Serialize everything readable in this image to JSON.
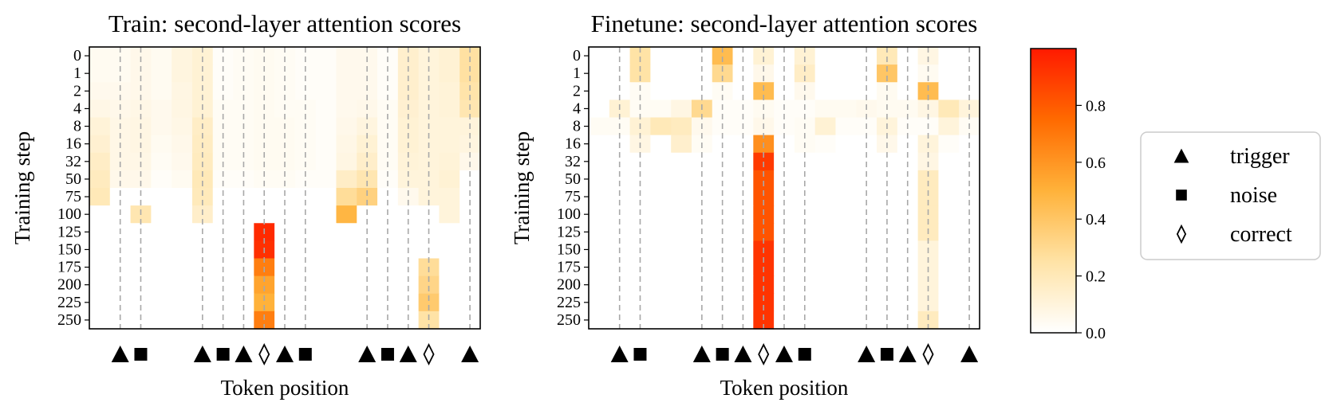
{
  "chart_data": [
    {
      "type": "heatmap",
      "title": "Train: second-layer attention scores",
      "xlabel": "Token position",
      "ylabel": "Training step",
      "y_ticks": [
        "0",
        "1",
        "2",
        "4",
        "8",
        "16",
        "32",
        "50",
        "75",
        "100",
        "125",
        "150",
        "175",
        "200",
        "225",
        "250"
      ],
      "n_cols": 19,
      "markers": [
        {
          "col": 1,
          "kind": "trigger"
        },
        {
          "col": 2,
          "kind": "noise"
        },
        {
          "col": 5,
          "kind": "trigger"
        },
        {
          "col": 6,
          "kind": "noise"
        },
        {
          "col": 7,
          "kind": "trigger"
        },
        {
          "col": 8,
          "kind": "correct"
        },
        {
          "col": 9,
          "kind": "trigger"
        },
        {
          "col": 10,
          "kind": "noise"
        },
        {
          "col": 13,
          "kind": "trigger"
        },
        {
          "col": 14,
          "kind": "noise"
        },
        {
          "col": 15,
          "kind": "trigger"
        },
        {
          "col": 16,
          "kind": "correct"
        },
        {
          "col": 18,
          "kind": "trigger"
        }
      ],
      "values": [
        [
          0.04,
          0.04,
          0.06,
          0.04,
          0.09,
          0.12,
          0.02,
          0.03,
          0.04,
          0.03,
          0.02,
          0.02,
          0.05,
          0.05,
          0.02,
          0.14,
          0.1,
          0.12,
          0.26
        ],
        [
          0.04,
          0.04,
          0.06,
          0.04,
          0.09,
          0.12,
          0.02,
          0.03,
          0.04,
          0.03,
          0.02,
          0.02,
          0.05,
          0.05,
          0.02,
          0.14,
          0.1,
          0.12,
          0.26
        ],
        [
          0.05,
          0.05,
          0.06,
          0.04,
          0.08,
          0.12,
          0.02,
          0.03,
          0.04,
          0.03,
          0.02,
          0.02,
          0.05,
          0.05,
          0.02,
          0.14,
          0.1,
          0.11,
          0.24
        ],
        [
          0.07,
          0.06,
          0.07,
          0.05,
          0.08,
          0.12,
          0.03,
          0.03,
          0.04,
          0.03,
          0.03,
          0.02,
          0.05,
          0.06,
          0.03,
          0.13,
          0.1,
          0.11,
          0.22
        ],
        [
          0.11,
          0.07,
          0.08,
          0.05,
          0.07,
          0.16,
          0.03,
          0.03,
          0.04,
          0.04,
          0.03,
          0.02,
          0.06,
          0.09,
          0.03,
          0.12,
          0.1,
          0.1,
          0.1
        ],
        [
          0.13,
          0.07,
          0.08,
          0.04,
          0.06,
          0.17,
          0.03,
          0.03,
          0.04,
          0.04,
          0.03,
          0.02,
          0.07,
          0.12,
          0.03,
          0.12,
          0.1,
          0.1,
          0.09
        ],
        [
          0.16,
          0.07,
          0.07,
          0.03,
          0.05,
          0.18,
          0.03,
          0.03,
          0.04,
          0.04,
          0.03,
          0.02,
          0.08,
          0.15,
          0.03,
          0.11,
          0.1,
          0.11,
          0.06
        ],
        [
          0.18,
          0.06,
          0.06,
          0.02,
          0.04,
          0.2,
          0.02,
          0.02,
          0.03,
          0.03,
          0.02,
          0.02,
          0.16,
          0.22,
          0.02,
          0.1,
          0.1,
          0.12,
          0.0
        ],
        [
          0.2,
          0.0,
          0.0,
          0.0,
          0.0,
          0.19,
          0.0,
          0.0,
          0.0,
          0.0,
          0.0,
          0.0,
          0.28,
          0.34,
          0.0,
          0.05,
          0.1,
          0.1,
          0.0
        ],
        [
          0.0,
          0.0,
          0.22,
          0.0,
          0.0,
          0.15,
          0.0,
          0.0,
          0.0,
          0.0,
          0.0,
          0.0,
          0.48,
          0.0,
          0.0,
          0.0,
          0.0,
          0.1,
          0.0
        ],
        [
          0.0,
          0.0,
          0.0,
          0.0,
          0.0,
          0.0,
          0.0,
          0.0,
          0.95,
          0.0,
          0.0,
          0.0,
          0.0,
          0.0,
          0.0,
          0.0,
          0.0,
          0.0,
          0.0
        ],
        [
          0.0,
          0.0,
          0.0,
          0.0,
          0.0,
          0.0,
          0.0,
          0.0,
          0.93,
          0.0,
          0.0,
          0.0,
          0.0,
          0.0,
          0.0,
          0.0,
          0.0,
          0.0,
          0.0
        ],
        [
          0.0,
          0.0,
          0.0,
          0.0,
          0.0,
          0.0,
          0.0,
          0.0,
          0.68,
          0.0,
          0.0,
          0.0,
          0.0,
          0.0,
          0.0,
          0.0,
          0.28,
          0.0,
          0.0
        ],
        [
          0.0,
          0.0,
          0.0,
          0.0,
          0.0,
          0.0,
          0.0,
          0.0,
          0.55,
          0.0,
          0.0,
          0.0,
          0.0,
          0.0,
          0.0,
          0.0,
          0.32,
          0.0,
          0.0
        ],
        [
          0.0,
          0.0,
          0.0,
          0.0,
          0.0,
          0.0,
          0.0,
          0.0,
          0.5,
          0.0,
          0.0,
          0.0,
          0.0,
          0.0,
          0.0,
          0.0,
          0.38,
          0.0,
          0.0
        ],
        [
          0.0,
          0.0,
          0.0,
          0.0,
          0.0,
          0.0,
          0.0,
          0.0,
          0.68,
          0.0,
          0.0,
          0.0,
          0.0,
          0.0,
          0.0,
          0.0,
          0.25,
          0.0,
          0.0
        ]
      ]
    },
    {
      "type": "heatmap",
      "title": "Finetune: second-layer attention scores",
      "xlabel": "Token position",
      "ylabel": "Training step",
      "y_ticks": [
        "0",
        "1",
        "2",
        "4",
        "8",
        "16",
        "32",
        "50",
        "75",
        "100",
        "125",
        "150",
        "175",
        "200",
        "225",
        "250"
      ],
      "n_cols": 19,
      "markers": [
        {
          "col": 1,
          "kind": "trigger"
        },
        {
          "col": 2,
          "kind": "noise"
        },
        {
          "col": 5,
          "kind": "trigger"
        },
        {
          "col": 6,
          "kind": "noise"
        },
        {
          "col": 7,
          "kind": "trigger"
        },
        {
          "col": 8,
          "kind": "correct"
        },
        {
          "col": 9,
          "kind": "trigger"
        },
        {
          "col": 10,
          "kind": "noise"
        },
        {
          "col": 13,
          "kind": "trigger"
        },
        {
          "col": 14,
          "kind": "noise"
        },
        {
          "col": 15,
          "kind": "trigger"
        },
        {
          "col": 16,
          "kind": "correct"
        },
        {
          "col": 18,
          "kind": "trigger"
        }
      ],
      "values": [
        [
          0.0,
          0.0,
          0.25,
          0.0,
          0.0,
          0.0,
          0.45,
          0.0,
          0.12,
          0.0,
          0.12,
          0.0,
          0.0,
          0.0,
          0.2,
          0.0,
          0.08,
          0.0,
          0.0
        ],
        [
          0.0,
          0.0,
          0.25,
          0.0,
          0.0,
          0.0,
          0.3,
          0.0,
          0.06,
          0.0,
          0.16,
          0.0,
          0.0,
          0.0,
          0.4,
          0.0,
          0.04,
          0.0,
          0.0
        ],
        [
          0.0,
          0.0,
          0.03,
          0.0,
          0.0,
          0.0,
          0.03,
          0.0,
          0.45,
          0.0,
          0.05,
          0.0,
          0.0,
          0.0,
          0.04,
          0.0,
          0.45,
          0.0,
          0.0
        ],
        [
          0.0,
          0.12,
          0.03,
          0.03,
          0.08,
          0.3,
          0.02,
          0.02,
          0.04,
          0.02,
          0.02,
          0.04,
          0.04,
          0.05,
          0.04,
          0.04,
          0.08,
          0.2,
          0.1
        ],
        [
          0.03,
          0.03,
          0.12,
          0.2,
          0.18,
          0.05,
          0.02,
          0.02,
          0.06,
          0.02,
          0.03,
          0.12,
          0.02,
          0.02,
          0.1,
          0.02,
          0.02,
          0.1,
          0.03
        ],
        [
          0.0,
          0.0,
          0.08,
          0.0,
          0.14,
          0.03,
          0.0,
          0.0,
          0.62,
          0.0,
          0.03,
          0.02,
          0.0,
          0.0,
          0.06,
          0.0,
          0.1,
          0.02,
          0.0
        ],
        [
          0.0,
          0.0,
          0.0,
          0.0,
          0.0,
          0.0,
          0.0,
          0.0,
          0.9,
          0.0,
          0.0,
          0.0,
          0.0,
          0.0,
          0.0,
          0.0,
          0.08,
          0.0,
          0.0
        ],
        [
          0.0,
          0.0,
          0.0,
          0.0,
          0.0,
          0.0,
          0.0,
          0.0,
          0.82,
          0.0,
          0.0,
          0.0,
          0.0,
          0.0,
          0.0,
          0.0,
          0.18,
          0.0,
          0.0
        ],
        [
          0.0,
          0.0,
          0.0,
          0.0,
          0.0,
          0.0,
          0.0,
          0.0,
          0.82,
          0.0,
          0.0,
          0.0,
          0.0,
          0.0,
          0.0,
          0.0,
          0.18,
          0.0,
          0.0
        ],
        [
          0.0,
          0.0,
          0.0,
          0.0,
          0.0,
          0.0,
          0.0,
          0.0,
          0.82,
          0.0,
          0.0,
          0.0,
          0.0,
          0.0,
          0.0,
          0.0,
          0.18,
          0.0,
          0.0
        ],
        [
          0.0,
          0.0,
          0.0,
          0.0,
          0.0,
          0.0,
          0.0,
          0.0,
          0.82,
          0.0,
          0.0,
          0.0,
          0.0,
          0.0,
          0.0,
          0.0,
          0.18,
          0.0,
          0.0
        ],
        [
          0.0,
          0.0,
          0.0,
          0.0,
          0.0,
          0.0,
          0.0,
          0.0,
          0.92,
          0.0,
          0.0,
          0.0,
          0.0,
          0.0,
          0.0,
          0.0,
          0.1,
          0.0,
          0.0
        ],
        [
          0.0,
          0.0,
          0.0,
          0.0,
          0.0,
          0.0,
          0.0,
          0.0,
          0.92,
          0.0,
          0.0,
          0.0,
          0.0,
          0.0,
          0.0,
          0.0,
          0.1,
          0.0,
          0.0
        ],
        [
          0.0,
          0.0,
          0.0,
          0.0,
          0.0,
          0.0,
          0.0,
          0.0,
          0.92,
          0.0,
          0.0,
          0.0,
          0.0,
          0.0,
          0.0,
          0.0,
          0.1,
          0.0,
          0.0
        ],
        [
          0.0,
          0.0,
          0.0,
          0.0,
          0.0,
          0.0,
          0.0,
          0.0,
          0.92,
          0.0,
          0.0,
          0.0,
          0.0,
          0.0,
          0.0,
          0.0,
          0.1,
          0.0,
          0.0
        ],
        [
          0.0,
          0.0,
          0.0,
          0.0,
          0.0,
          0.0,
          0.0,
          0.0,
          0.92,
          0.0,
          0.0,
          0.0,
          0.0,
          0.0,
          0.0,
          0.0,
          0.18,
          0.0,
          0.0
        ]
      ]
    }
  ],
  "colorbar": {
    "colormap": "autumn_r",
    "range": [
      0.0,
      1.0
    ],
    "ticks": [
      "0.0",
      "0.2",
      "0.4",
      "0.6",
      "0.8"
    ],
    "stops": [
      "#ffffff",
      "#ffe3a6",
      "#ffb23a",
      "#ff6a00",
      "#ff1a00"
    ]
  },
  "legend": {
    "placement": "right",
    "items": [
      {
        "kind": "trigger",
        "label": "trigger"
      },
      {
        "kind": "noise",
        "label": "noise"
      },
      {
        "kind": "correct",
        "label": "correct"
      }
    ]
  }
}
